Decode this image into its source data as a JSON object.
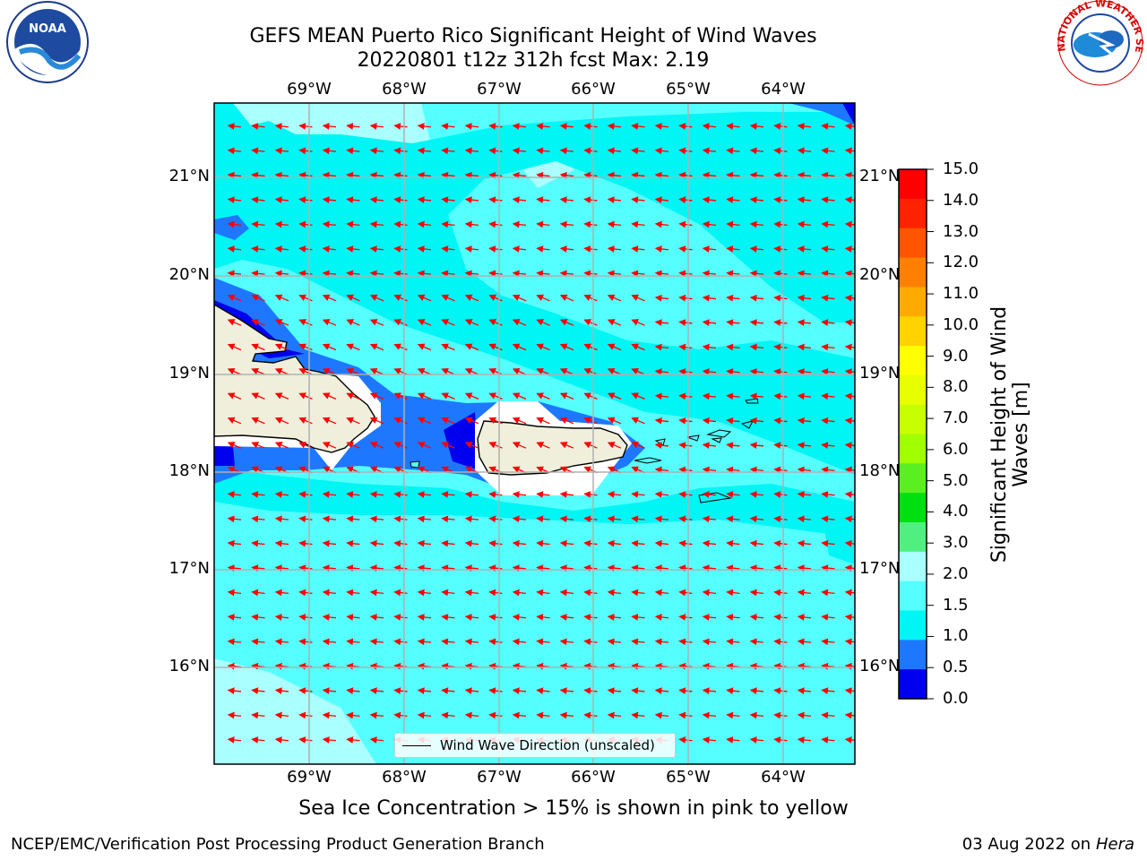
{
  "header": {
    "title_line1": "GEFS MEAN Puerto Rico Significant Height of Wind Waves",
    "title_line2": "20220801 t12z 312h fcst   Max: 2.19"
  },
  "logos": {
    "left": "noaa-logo",
    "right": "national-weather-service-logo",
    "right_text": "NATIONAL WEATHER SERVICE"
  },
  "map": {
    "lon_labels": [
      "69°W",
      "68°W",
      "67°W",
      "66°W",
      "65°W",
      "64°W"
    ],
    "lat_labels": [
      "21°N",
      "20°N",
      "19°N",
      "18°N",
      "17°N",
      "16°N"
    ],
    "legend_label": "Wind Wave Direction (unscaled)",
    "colors": {
      "deep": "#0000ee",
      "mid": "#1e78ff",
      "cyan": "#00f5f5",
      "light": "#55ffff",
      "pale": "#aaffff",
      "land": "#efefdc",
      "arrow": "#ff0000"
    }
  },
  "colorbar": {
    "title_line1": "Significant Height of Wind",
    "title_line2": "Waves [m]",
    "ticks": [
      "15.0",
      "14.0",
      "13.0",
      "12.0",
      "11.0",
      "10.0",
      "9.0",
      "8.0",
      "7.0",
      "6.0",
      "5.0",
      "4.0",
      "3.0",
      "2.0",
      "1.5",
      "1.0",
      "0.5",
      "0.0"
    ],
    "colors_top_to_bottom": [
      "#ff0000",
      "#ff2200",
      "#ff5500",
      "#ff8000",
      "#ffaa00",
      "#ffd200",
      "#ffff00",
      "#e8ff00",
      "#c8ff00",
      "#a0ff00",
      "#5aef20",
      "#00e010",
      "#50f080",
      "#aaffff",
      "#55ffff",
      "#00f5f5",
      "#1e78ff",
      "#0000ee"
    ]
  },
  "footer": {
    "sea_ice_note": "Sea Ice Concentration > 15% is shown in pink to yellow",
    "branch": "NCEP/EMC/Verification Post Processing Product Generation Branch",
    "date": "03 Aug 2022 on",
    "system": "Hera"
  }
}
